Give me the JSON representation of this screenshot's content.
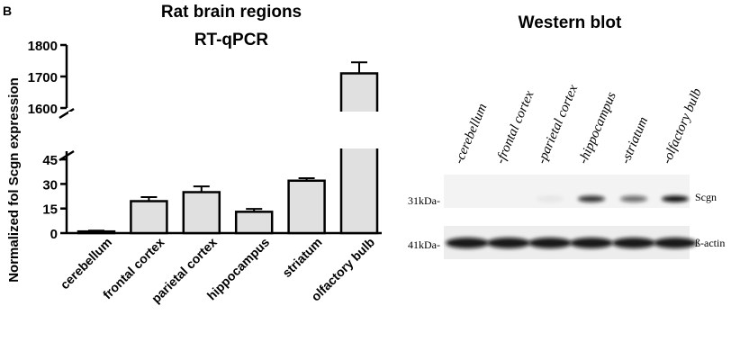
{
  "panel_letter": "B",
  "chart_data": {
    "type": "bar",
    "title": "Rat brain regions",
    "subtitle": "RT-qPCR",
    "ylabel": "Normalized fol Scgn expression",
    "xlabel": "",
    "categories": [
      "cerebellum",
      "frontal cortex",
      "parietal cortex",
      "hippocampus",
      "striatum",
      "olfactory bulb"
    ],
    "values": [
      1,
      19.5,
      25,
      13,
      32,
      1710
    ],
    "errors": [
      0.5,
      2.5,
      3.5,
      1.8,
      1.5,
      35
    ],
    "axis_break": true,
    "ylim_lower": [
      0,
      50
    ],
    "ylim_upper": [
      1600,
      1800
    ],
    "yticks_lower": [
      "0",
      "15",
      "30",
      "45"
    ],
    "yticks_upper": [
      "1600",
      "1700",
      "1800"
    ],
    "bar_color": "#e0e0e0"
  },
  "western_blot": {
    "title": "Western blot",
    "lane_labels": [
      "-cerebellum",
      "-frontal cortex",
      "-parietal cortex",
      "-hippocampus",
      "-striatum",
      "-olfactory bulb"
    ],
    "rows": [
      {
        "weight": "31kDa-",
        "protein": "Scgn",
        "intensities": [
          0,
          0,
          0.05,
          0.85,
          0.6,
          1.0
        ]
      },
      {
        "weight": "41kDa-",
        "protein": "ß-actin",
        "intensities": [
          0.95,
          0.95,
          0.95,
          0.95,
          0.95,
          0.95
        ]
      }
    ]
  }
}
